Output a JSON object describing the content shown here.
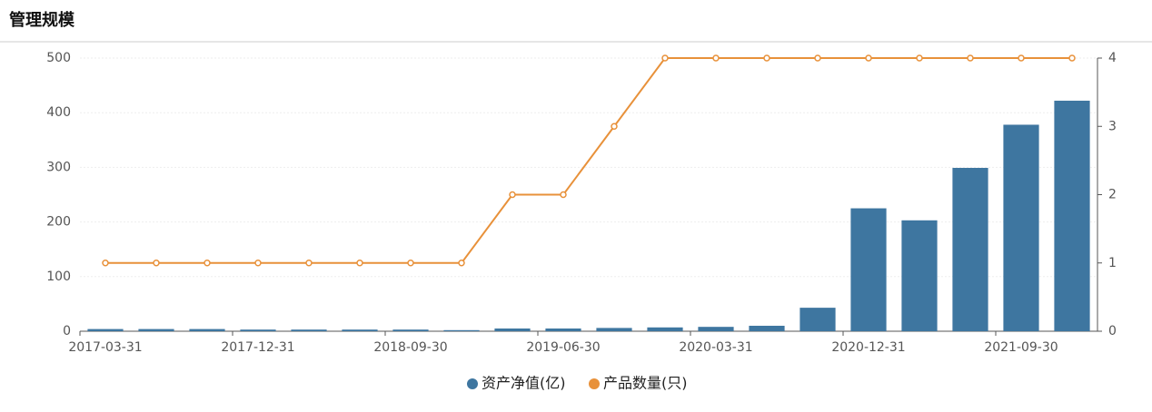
{
  "chart_data": {
    "type": "bar-line",
    "title": "管理规模",
    "categories": [
      "2017-03-31",
      null,
      null,
      "2017-12-31",
      null,
      null,
      "2018-09-30",
      null,
      null,
      "2019-06-30",
      null,
      null,
      "2020-03-31",
      null,
      null,
      "2020-12-31",
      null,
      null,
      "2021-09-30",
      null
    ],
    "series": [
      {
        "name": "资产净值(亿)",
        "type": "bar",
        "color": "#3e76a0",
        "values": [
          4,
          4,
          4,
          3,
          3,
          3,
          3,
          2,
          5,
          5,
          6,
          7,
          8,
          10,
          43,
          225,
          203,
          299,
          378,
          422
        ]
      },
      {
        "name": "产品数量(只)",
        "type": "line",
        "axis": "y2",
        "color": "#e8913a",
        "values": [
          1,
          1,
          1,
          1,
          1,
          1,
          1,
          1,
          2,
          2,
          3,
          4,
          4,
          4,
          4,
          4,
          4,
          4,
          4,
          4
        ]
      }
    ],
    "ylim": [
      0,
      500
    ],
    "yticks": [
      0,
      100,
      200,
      300,
      400,
      500
    ],
    "y2lim": [
      0,
      4
    ],
    "y2ticks": [
      0,
      1,
      2,
      3,
      4
    ],
    "grid": true
  }
}
